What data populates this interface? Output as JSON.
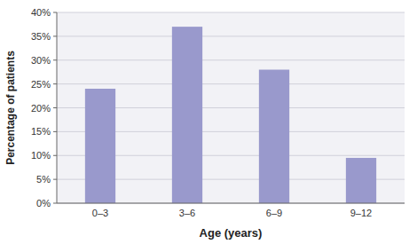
{
  "chart_data": {
    "type": "bar",
    "categories": [
      "0–3",
      "3–6",
      "6–9",
      "9–12"
    ],
    "values": [
      24,
      37,
      28,
      9.5
    ],
    "color": "#9999CC",
    "xlabel": "Age (years)",
    "ylabel": "Percentage of patients",
    "ylim": [
      0,
      40
    ],
    "yticks": [
      {
        "value": 0,
        "label": "0%"
      },
      {
        "value": 5,
        "label": "5%"
      },
      {
        "value": 10,
        "label": "10%"
      },
      {
        "value": 15,
        "label": "15%"
      },
      {
        "value": 20,
        "label": "20%"
      },
      {
        "value": 25,
        "label": "25%"
      },
      {
        "value": 30,
        "label": "30%"
      },
      {
        "value": 35,
        "label": "35%"
      },
      {
        "value": 40,
        "label": "40%"
      }
    ],
    "grid": true
  }
}
